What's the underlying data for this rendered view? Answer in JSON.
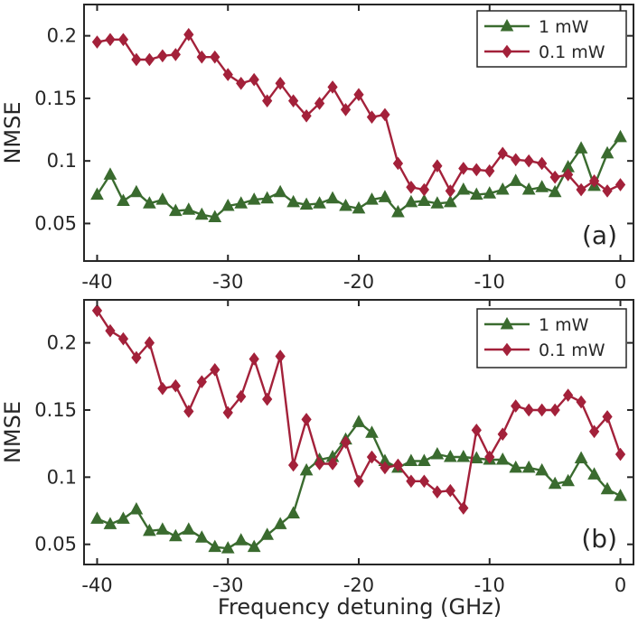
{
  "colors": {
    "green": "#3a6b2f",
    "red": "#a3213a",
    "axis": "#262626"
  },
  "figure": {
    "xlabel": "Frequency detuning (GHz)"
  },
  "chart_data": [
    {
      "type": "line",
      "panel_label": "(a)",
      "ylabel": "NMSE",
      "xlim": [
        -41,
        1
      ],
      "ylim": [
        0.02,
        0.225
      ],
      "x_ticks": [
        -40,
        -30,
        -20,
        -10,
        0
      ],
      "x_tick_labels": [
        "-40",
        "-30",
        "-20",
        "-10",
        "0"
      ],
      "y_ticks": [
        0.05,
        0.1,
        0.15,
        0.2
      ],
      "y_tick_labels": [
        "0.05",
        "0.1",
        "0.15",
        "0.2"
      ],
      "legend_position": "top-right",
      "x": [
        -40,
        -39,
        -38,
        -37,
        -36,
        -35,
        -34,
        -33,
        -32,
        -31,
        -30,
        -29,
        -28,
        -27,
        -26,
        -25,
        -24,
        -23,
        -22,
        -21,
        -20,
        -19,
        -18,
        -17,
        -16,
        -15,
        -14,
        -13,
        -12,
        -11,
        -10,
        -9,
        -8,
        -7,
        -6,
        -5,
        -4,
        -3,
        -2,
        -1,
        0
      ],
      "series": [
        {
          "name": "1 mW",
          "color": "green",
          "marker": "triangle",
          "values": [
            0.073,
            0.089,
            0.068,
            0.075,
            0.066,
            0.069,
            0.06,
            0.061,
            0.057,
            0.055,
            0.064,
            0.066,
            0.069,
            0.07,
            0.075,
            0.067,
            0.065,
            0.066,
            0.07,
            0.064,
            0.062,
            0.069,
            0.071,
            0.059,
            0.067,
            0.068,
            0.066,
            0.067,
            0.077,
            0.073,
            0.074,
            0.077,
            0.084,
            0.077,
            0.079,
            0.075,
            0.095,
            0.11,
            0.08,
            0.106,
            0.119
          ]
        },
        {
          "name": "0.1 mW",
          "color": "red",
          "marker": "diamond",
          "values": [
            0.195,
            0.197,
            0.197,
            0.181,
            0.181,
            0.184,
            0.185,
            0.201,
            0.183,
            0.183,
            0.169,
            0.162,
            0.165,
            0.148,
            0.162,
            0.148,
            0.136,
            0.146,
            0.159,
            0.141,
            0.153,
            0.135,
            0.137,
            0.098,
            0.079,
            0.077,
            0.096,
            0.076,
            0.094,
            0.093,
            0.092,
            0.106,
            0.101,
            0.1,
            0.098,
            0.087,
            0.089,
            0.077,
            0.084,
            0.076,
            0.081
          ]
        }
      ]
    },
    {
      "type": "line",
      "panel_label": "(b)",
      "ylabel": "NMSE",
      "xlim": [
        -41,
        1
      ],
      "ylim": [
        0.035,
        0.232
      ],
      "x_ticks": [
        -40,
        -30,
        -20,
        -10,
        0
      ],
      "x_tick_labels": [
        "-40",
        "-30",
        "-20",
        "-10",
        "0"
      ],
      "y_ticks": [
        0.05,
        0.1,
        0.15,
        0.2
      ],
      "y_tick_labels": [
        "0.05",
        "0.1",
        "0.15",
        "0.2"
      ],
      "legend_position": "top-right",
      "x": [
        -40,
        -39,
        -38,
        -37,
        -36,
        -35,
        -34,
        -33,
        -32,
        -31,
        -30,
        -29,
        -28,
        -27,
        -26,
        -25,
        -24,
        -23,
        -22,
        -21,
        -20,
        -19,
        -18,
        -17,
        -16,
        -15,
        -14,
        -13,
        -12,
        -11,
        -10,
        -9,
        -8,
        -7,
        -6,
        -5,
        -4,
        -3,
        -2,
        -1,
        0
      ],
      "series": [
        {
          "name": "1 mW",
          "color": "green",
          "marker": "triangle",
          "values": [
            0.069,
            0.065,
            0.069,
            0.076,
            0.06,
            0.061,
            0.056,
            0.061,
            0.055,
            0.048,
            0.047,
            0.053,
            0.048,
            0.057,
            0.065,
            0.073,
            0.105,
            0.113,
            0.115,
            0.128,
            0.141,
            0.133,
            0.112,
            0.107,
            0.112,
            0.112,
            0.117,
            0.115,
            0.115,
            0.114,
            0.113,
            0.113,
            0.107,
            0.107,
            0.105,
            0.095,
            0.097,
            0.114,
            0.102,
            0.091,
            0.086
          ]
        },
        {
          "name": "0.1 mW",
          "color": "red",
          "marker": "diamond",
          "values": [
            0.224,
            0.209,
            0.203,
            0.189,
            0.2,
            0.166,
            0.168,
            0.149,
            0.171,
            0.18,
            0.148,
            0.16,
            0.188,
            0.158,
            0.19,
            0.109,
            0.143,
            0.11,
            0.11,
            0.126,
            0.097,
            0.115,
            0.107,
            0.109,
            0.097,
            0.097,
            0.089,
            0.09,
            0.077,
            0.135,
            0.115,
            0.132,
            0.153,
            0.15,
            0.15,
            0.15,
            0.161,
            0.156,
            0.134,
            0.145,
            0.117
          ]
        }
      ]
    }
  ]
}
